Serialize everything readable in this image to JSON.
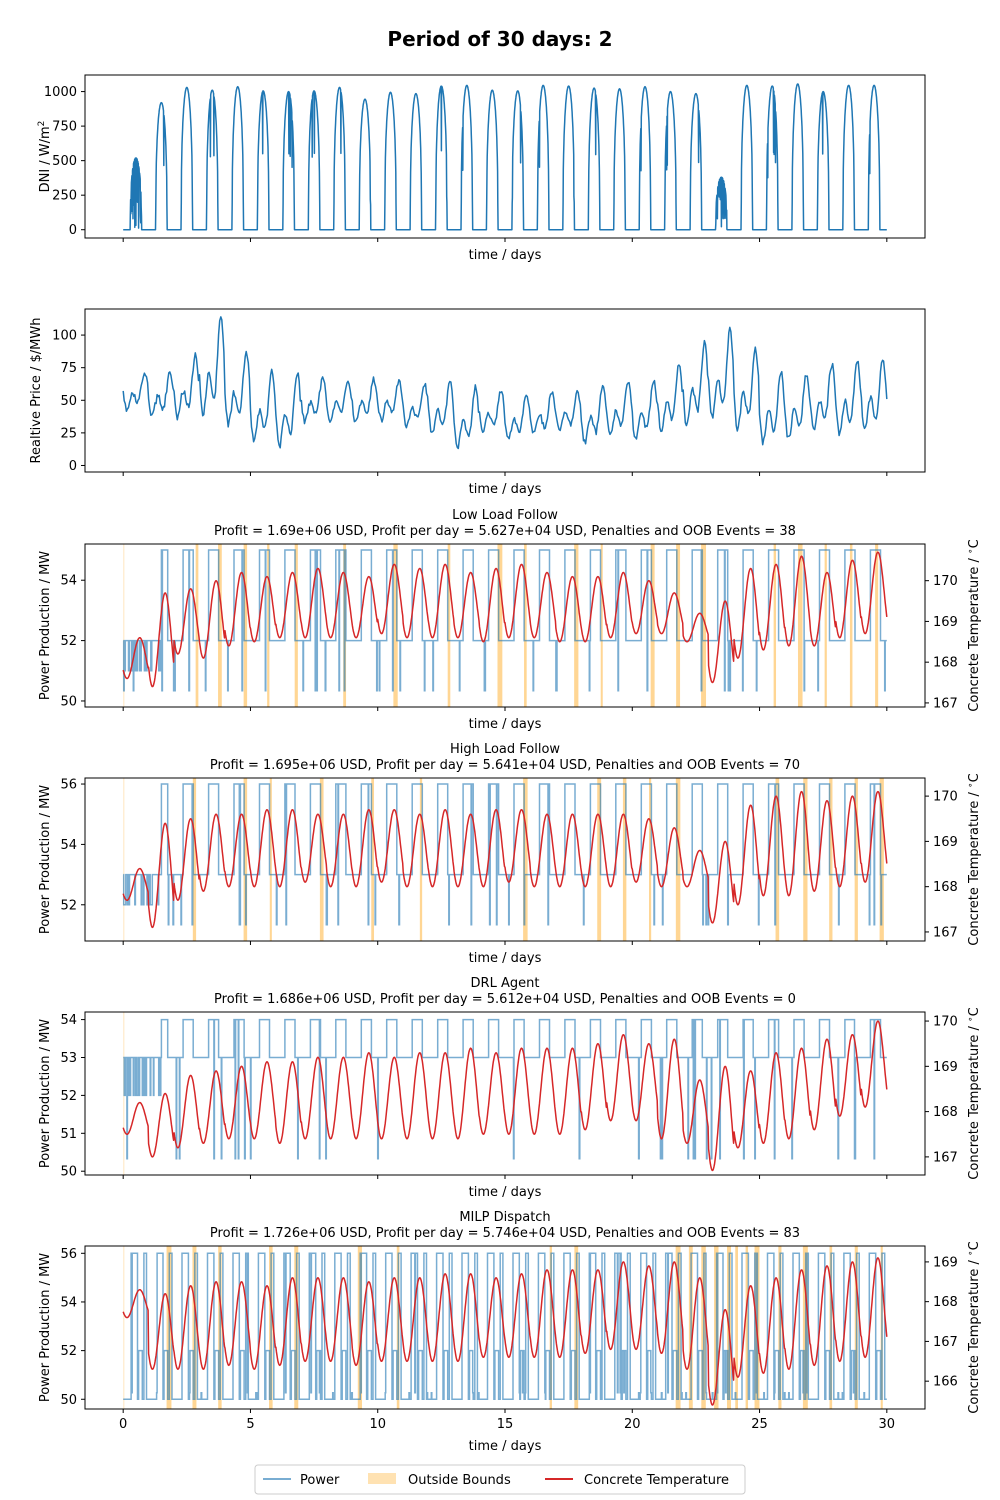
{
  "figure": {
    "suptitle": "Period of 30 days: 2"
  },
  "colors": {
    "power": "#1f77b4",
    "power_light": "#76a9d4",
    "temperature": "#d62728",
    "oob": "#ffc566"
  },
  "legend": {
    "power": "Power",
    "oob": "Outside Bounds",
    "temperature": "Concrete Temperature"
  },
  "chart_data": [
    {
      "type": "line",
      "title": "",
      "xlabel": "time / days",
      "ylabel": "DNI / W/m²",
      "xlim": [
        -1.5,
        31.5
      ],
      "ylim": [
        -60,
        1120
      ],
      "yticks": [
        0,
        250,
        500,
        750,
        1000
      ],
      "xticks_labeled": false,
      "series": [
        {
          "kind": "solar",
          "daily_peaks": [
            520,
            920,
            1030,
            1010,
            1035,
            1005,
            1000,
            1005,
            1030,
            945,
            995,
            985,
            1040,
            1045,
            1010,
            1005,
            1045,
            1040,
            1025,
            1020,
            1035,
            1000,
            985,
            380,
            1045,
            1040,
            1055,
            1000,
            1045,
            1045
          ]
        }
      ]
    },
    {
      "type": "line",
      "title": "",
      "xlabel": "time / days",
      "ylabel": "Realtive Price / $/MWh",
      "xlim": [
        -1.5,
        31.5
      ],
      "ylim": [
        -5,
        120
      ],
      "yticks": [
        0,
        25,
        50,
        75,
        100
      ],
      "xticks_labeled": false,
      "series": [
        {
          "kind": "price",
          "daily_max": [
            72,
            72,
            85,
            115,
            88,
            72,
            72,
            68,
            65,
            67,
            65,
            63,
            64,
            60,
            58,
            55,
            57,
            56,
            62,
            64,
            66,
            78,
            95,
            105,
            90,
            72,
            70,
            78,
            80,
            82
          ],
          "daily_min": [
            38,
            32,
            28,
            25,
            22,
            10,
            5,
            28,
            30,
            28,
            30,
            25,
            18,
            5,
            20,
            15,
            18,
            22,
            10,
            18,
            12,
            18,
            20,
            25,
            18,
            8,
            12,
            18,
            15,
            18
          ]
        }
      ]
    },
    {
      "type": "line",
      "title": "Low Load Follow",
      "subtitle": "Profit = 1.69e+06 USD,  Profit per day = 5.627e+04 USD, Penalties and OOB Events = 38",
      "xlabel": "time / days",
      "ylabel": "Power Production / MW",
      "ylabel_right": "Concrete Temperature / $^\\circ$C",
      "xlim": [
        -1.5,
        31.5
      ],
      "ylim": [
        49.8,
        55.2
      ],
      "yticks": [
        50,
        52,
        54
      ],
      "ylim_right": [
        166.9,
        170.9
      ],
      "yticks_right": [
        167,
        168,
        169,
        170
      ],
      "xticks_labeled": false,
      "power_low": 52,
      "power_high": 55,
      "temperature_daily_max": [
        168.6,
        169.7,
        169.8,
        170.0,
        170.2,
        170.1,
        170.2,
        170.3,
        170.2,
        170.1,
        170.4,
        170.3,
        170.4,
        170.2,
        170.3,
        170.4,
        170.2,
        170.1,
        170.1,
        170.2,
        170.0,
        169.7,
        169.2,
        169.5,
        170.3,
        170.4,
        170.6,
        170.2,
        170.5,
        170.7
      ],
      "temperature_daily_min": [
        167.6,
        167.4,
        168.2,
        168.1,
        168.4,
        168.5,
        168.6,
        168.6,
        168.6,
        168.6,
        168.7,
        168.6,
        168.6,
        168.6,
        168.5,
        168.6,
        168.6,
        168.5,
        168.5,
        168.6,
        168.7,
        168.7,
        168.5,
        167.5,
        168.1,
        168.3,
        168.4,
        168.4,
        168.6,
        168.7
      ],
      "oob_events": [
        2.9,
        3.8,
        4.8,
        5.7,
        6.8,
        8.7,
        10.7,
        12.8,
        14.8,
        15.8,
        17.8,
        18.8,
        20.8,
        21.8,
        22.8,
        25.6,
        26.6,
        27.6,
        28.6,
        29.6
      ]
    },
    {
      "type": "line",
      "title": "High Load Follow",
      "subtitle": "Profit = 1.695e+06 USD,  Profit per day = 5.641e+04 USD, Penalties and OOB Events = 70",
      "xlabel": "time / days",
      "ylabel": "Power Production / MW",
      "ylabel_right": "Concrete Temperature / $^\\circ$C",
      "xlim": [
        -1.5,
        31.5
      ],
      "ylim": [
        50.8,
        56.2
      ],
      "yticks": [
        52,
        54,
        56
      ],
      "ylim_right": [
        166.8,
        170.4
      ],
      "yticks_right": [
        167,
        168,
        169,
        170
      ],
      "xticks_labeled": false,
      "power_low": 53,
      "power_high": 56,
      "temperature_daily_max": [
        168.4,
        169.4,
        169.5,
        169.6,
        169.6,
        169.7,
        169.7,
        169.6,
        169.6,
        169.7,
        169.7,
        169.6,
        169.7,
        169.6,
        169.7,
        169.7,
        169.6,
        169.6,
        169.6,
        169.6,
        169.5,
        169.3,
        168.8,
        169.0,
        169.8,
        170.0,
        170.1,
        169.9,
        170.0,
        170.1
      ],
      "temperature_daily_min": [
        167.7,
        167.1,
        167.7,
        167.9,
        168.0,
        168.0,
        168.0,
        168.1,
        168.0,
        168.0,
        168.1,
        168.0,
        168.0,
        168.0,
        168.0,
        168.1,
        168.0,
        168.0,
        168.0,
        168.0,
        168.1,
        168.0,
        168.0,
        167.2,
        167.6,
        167.8,
        167.8,
        167.9,
        168.0,
        168.1
      ],
      "oob_events": [
        2.8,
        4.8,
        5.8,
        7.8,
        9.8,
        11.7,
        15.8,
        18.7,
        19.7,
        20.7,
        21.8,
        25.7,
        26.8,
        27.8,
        28.8,
        29.8
      ]
    },
    {
      "type": "line",
      "title": "DRL Agent",
      "subtitle": "Profit = 1.686e+06 USD,  Profit per day = 5.612e+04 USD, Penalties and OOB Events = 0",
      "xlabel": "time / days",
      "ylabel": "Power Production / MW",
      "ylabel_right": "Concrete Temperature / $^\\circ$C",
      "xlim": [
        -1.5,
        31.5
      ],
      "ylim": [
        49.9,
        54.2
      ],
      "yticks": [
        50,
        51,
        52,
        53,
        54
      ],
      "ylim_right": [
        166.6,
        170.2
      ],
      "yticks_right": [
        167,
        168,
        169,
        170
      ],
      "xticks_labeled": false,
      "power_low": 53,
      "power_high": 54,
      "temperature_daily_max": [
        168.2,
        168.4,
        168.8,
        168.9,
        169.0,
        169.1,
        169.1,
        169.2,
        169.2,
        169.3,
        169.2,
        169.3,
        169.3,
        169.4,
        169.3,
        169.4,
        169.4,
        169.4,
        169.5,
        169.7,
        169.5,
        169.6,
        168.7,
        169.0,
        168.9,
        169.3,
        169.4,
        169.6,
        169.7,
        170.0
      ],
      "temperature_daily_min": [
        167.5,
        167.0,
        167.2,
        167.3,
        167.4,
        167.4,
        167.3,
        167.4,
        167.4,
        167.4,
        167.4,
        167.4,
        167.4,
        167.4,
        167.5,
        167.5,
        167.5,
        167.5,
        167.6,
        167.8,
        167.8,
        167.4,
        167.3,
        166.7,
        167.2,
        167.3,
        167.4,
        167.6,
        167.9,
        168.1
      ],
      "oob_events": []
    },
    {
      "type": "line",
      "title": "MILP Dispatch",
      "subtitle": "Profit = 1.726e+06 USD,  Profit per day = 5.746e+04 USD, Penalties and OOB Events = 83",
      "xlabel": "time / days",
      "ylabel": "Power Production / MW",
      "ylabel_right": "Concrete Temperature / $^\\circ$C",
      "xlim": [
        -1.5,
        31.5
      ],
      "ylim": [
        49.6,
        56.3
      ],
      "yticks": [
        50,
        52,
        54,
        56
      ],
      "ylim_right": [
        165.3,
        169.4
      ],
      "yticks_right": [
        166,
        167,
        168,
        169
      ],
      "xticks": [
        0,
        5,
        10,
        15,
        20,
        25,
        30
      ],
      "xticks_labeled": true,
      "power_low": 50,
      "power_high": 56,
      "temperature_daily_max": [
        168.3,
        168.2,
        168.4,
        168.5,
        168.5,
        168.4,
        168.6,
        168.6,
        168.6,
        168.5,
        168.6,
        168.6,
        168.7,
        168.7,
        168.6,
        168.7,
        168.8,
        168.8,
        168.8,
        169.0,
        168.9,
        169.0,
        168.6,
        167.8,
        168.4,
        168.6,
        168.8,
        168.9,
        169.0,
        169.1
      ],
      "temperature_daily_min": [
        167.6,
        166.3,
        166.3,
        166.3,
        166.4,
        166.3,
        166.4,
        166.5,
        166.5,
        166.4,
        166.5,
        166.5,
        166.5,
        166.5,
        166.6,
        166.6,
        166.6,
        166.6,
        166.7,
        166.8,
        166.8,
        166.7,
        166.3,
        165.4,
        166.1,
        166.2,
        166.3,
        166.4,
        166.5,
        166.6
      ],
      "oob_events": [
        1.8,
        2.8,
        3.8,
        5.8,
        6.8,
        9.3,
        10.8,
        16.8,
        17.8,
        21.8,
        22.3,
        22.8,
        23.3,
        23.8,
        24.1,
        24.5,
        24.9,
        25.8,
        26.8,
        27.8,
        28.8,
        29.8
      ]
    }
  ]
}
